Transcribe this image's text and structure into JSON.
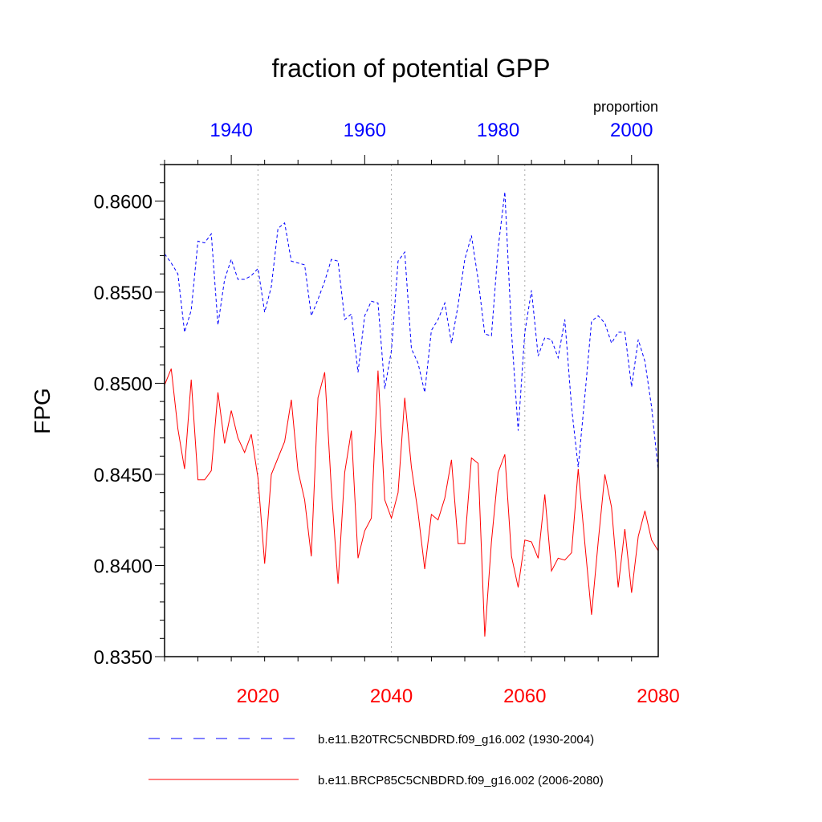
{
  "chart_data": {
    "type": "line",
    "title": "fraction of potential GPP",
    "units_label": "proportion",
    "ylabel": "FPG",
    "ylim": [
      0.835,
      0.862
    ],
    "y_ticks": [
      "0.8350",
      "0.8400",
      "0.8450",
      "0.8500",
      "0.8550",
      "0.8600"
    ],
    "bottom_axis": {
      "range": [
        2006,
        2080
      ],
      "ticks": [
        2020,
        2040,
        2060,
        2080
      ],
      "color": "#ff0000"
    },
    "top_axis": {
      "range": [
        1930,
        2004
      ],
      "ticks": [
        1940,
        1960,
        1980,
        2000
      ],
      "color": "#0000ff"
    },
    "vertical_gridlines_at": [
      2020,
      2040,
      2060
    ],
    "series": [
      {
        "name": "b.e11.B20TRC5CNBDRD.f09_g16.002 (1930-2004)",
        "axis": "top",
        "color": "#0000ff",
        "dash": "dashed",
        "x_start": 1930,
        "values": [
          0.8571,
          0.8566,
          0.856,
          0.8528,
          0.854,
          0.8578,
          0.8577,
          0.8582,
          0.8532,
          0.8557,
          0.8568,
          0.8557,
          0.8557,
          0.8559,
          0.8563,
          0.8539,
          0.8553,
          0.8585,
          0.8588,
          0.8567,
          0.8566,
          0.8565,
          0.8537,
          0.8546,
          0.8556,
          0.8568,
          0.8567,
          0.8535,
          0.8538,
          0.8506,
          0.8537,
          0.8545,
          0.8544,
          0.8497,
          0.8518,
          0.8567,
          0.8572,
          0.8519,
          0.8511,
          0.8495,
          0.8529,
          0.8535,
          0.8544,
          0.8522,
          0.8543,
          0.8568,
          0.8581,
          0.8557,
          0.8527,
          0.8526,
          0.8574,
          0.8605,
          0.8528,
          0.8474,
          0.8528,
          0.8551,
          0.8515,
          0.8525,
          0.8524,
          0.8514,
          0.8535,
          0.8487,
          0.8454,
          0.8493,
          0.8534,
          0.8537,
          0.8533,
          0.8522,
          0.8528,
          0.8528,
          0.8498,
          0.8524,
          0.8512,
          0.8487,
          0.8452
        ]
      },
      {
        "name": "b.e11.BRCP85C5CNBDRD.f09_g16.002 (2006-2080)",
        "axis": "bottom",
        "color": "#ff0000",
        "dash": "solid",
        "x_start": 2006,
        "values": [
          0.8499,
          0.8508,
          0.8475,
          0.8453,
          0.8502,
          0.8447,
          0.8447,
          0.8452,
          0.8495,
          0.8467,
          0.8485,
          0.847,
          0.8462,
          0.8472,
          0.8448,
          0.8401,
          0.845,
          0.8459,
          0.8468,
          0.8491,
          0.8452,
          0.8436,
          0.8405,
          0.8492,
          0.8506,
          0.8442,
          0.839,
          0.8451,
          0.8474,
          0.8404,
          0.8419,
          0.8426,
          0.8507,
          0.8436,
          0.8426,
          0.844,
          0.8492,
          0.8454,
          0.8429,
          0.8398,
          0.8428,
          0.8425,
          0.8437,
          0.8458,
          0.8412,
          0.8412,
          0.8459,
          0.8456,
          0.8361,
          0.8413,
          0.8451,
          0.8461,
          0.8405,
          0.8388,
          0.8414,
          0.8413,
          0.8404,
          0.8439,
          0.8397,
          0.8404,
          0.8403,
          0.8407,
          0.8453,
          0.8412,
          0.8373,
          0.8413,
          0.845,
          0.8432,
          0.8388,
          0.842,
          0.8385,
          0.8416,
          0.843,
          0.8414,
          0.8408
        ]
      }
    ],
    "legend": [
      {
        "label": "b.e11.B20TRC5CNBDRD.f09_g16.002 (1930-2004)",
        "color": "#0000ff",
        "dash": "dashed"
      },
      {
        "label": "b.e11.BRCP85C5CNBDRD.f09_g16.002 (2006-2080)",
        "color": "#ff0000",
        "dash": "solid"
      }
    ]
  }
}
